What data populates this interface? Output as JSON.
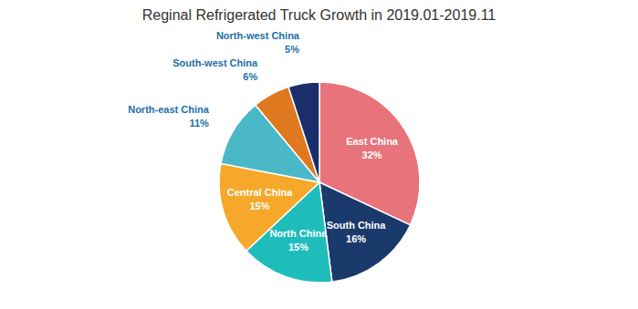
{
  "chart_data": {
    "type": "pie",
    "title": "Reginal Refrigerated Truck Growth in 2019.01-2019.11",
    "categories": [
      "East China",
      "South China",
      "North China",
      "Central China",
      "North-east China",
      "South-west China",
      "North-west China"
    ],
    "values": [
      32,
      16,
      15,
      15,
      11,
      6,
      5
    ],
    "value_labels": [
      "32%",
      "16%",
      "15%",
      "15%",
      "11%",
      "6%",
      "5%"
    ],
    "colors": [
      "#E8737A",
      "#1A3A6B",
      "#1FBCBC",
      "#F5A82A",
      "#4BB8C8",
      "#E07820",
      "#1A2E6B"
    ],
    "data_labels": true
  }
}
